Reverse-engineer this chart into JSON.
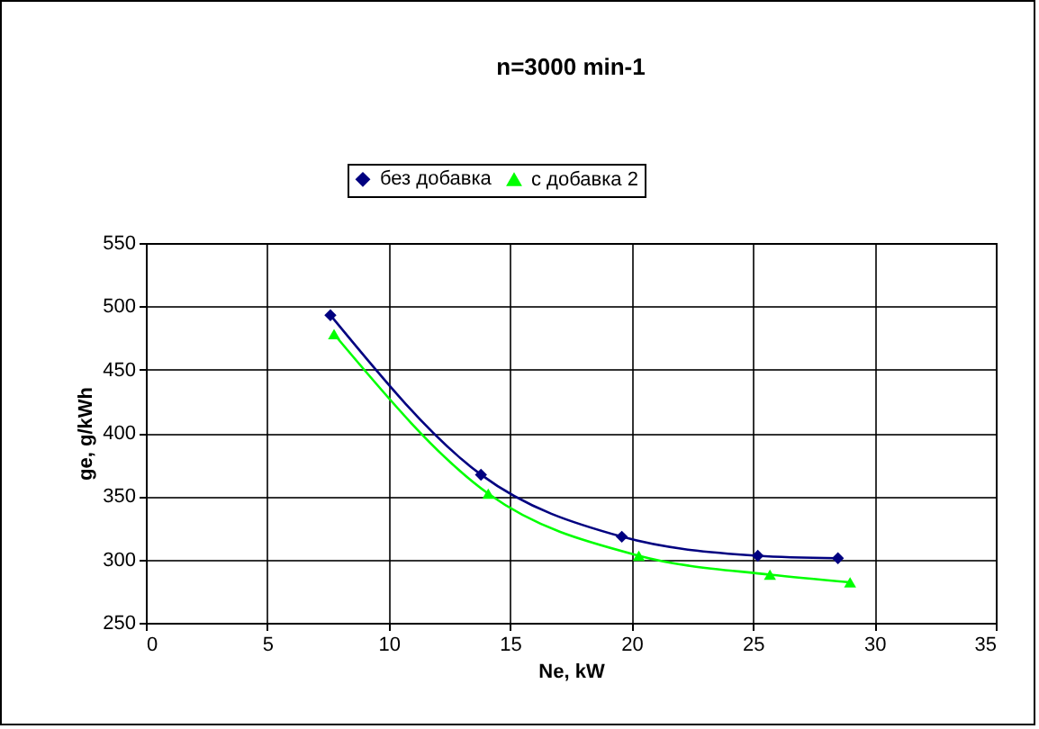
{
  "chart_data": {
    "type": "line",
    "title": "n=3000 min-1",
    "xlabel": "Ne, kW",
    "ylabel": "ge, g/kWh",
    "series": [
      {
        "name": "без добавка",
        "color": "#000080",
        "marker": "diamond",
        "x": [
          7.6,
          13.8,
          19.6,
          25.2,
          28.5
        ],
        "values": [
          493,
          367,
          318,
          303,
          301
        ]
      },
      {
        "name": "с добавка 2",
        "color": "#00ff00",
        "marker": "triangle",
        "x": [
          7.75,
          14.1,
          20.3,
          25.7,
          29.0
        ],
        "values": [
          478,
          352,
          303,
          288,
          282
        ]
      }
    ],
    "xlim": [
      0,
      35
    ],
    "xticks": [
      0,
      5,
      10,
      15,
      20,
      25,
      30,
      35
    ],
    "ylim": [
      250,
      550
    ],
    "yticks": [
      250,
      300,
      350,
      400,
      450,
      500,
      550
    ],
    "grid": true,
    "legend": "top",
    "line_style": "solid"
  }
}
